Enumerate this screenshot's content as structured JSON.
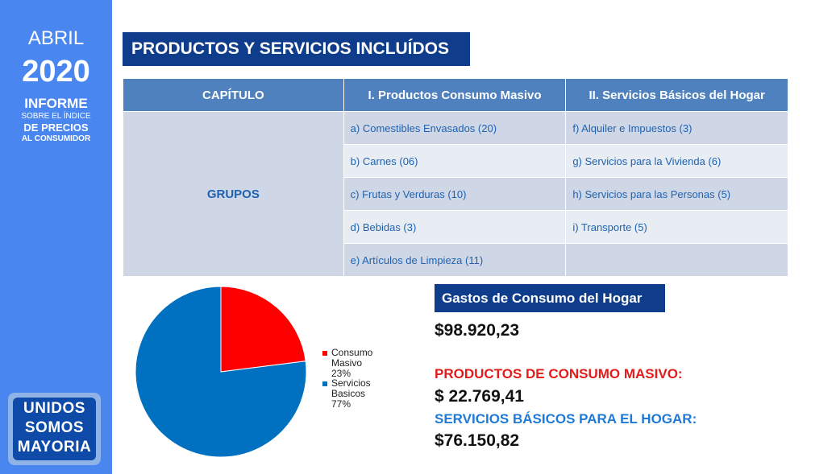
{
  "sidebar": {
    "month": "ABRIL",
    "year": "2020",
    "line1": "INFORME",
    "line2": "SOBRE EL ÍNDICE",
    "line3": "DE PRECIOS",
    "line4": "AL CONSUMIDOR",
    "logo": [
      "UNIDOS",
      "SOMOS",
      "MAYORIA"
    ]
  },
  "title": "PRODUCTOS Y SERVICIOS INCLUÍDOS",
  "table": {
    "headers": [
      "CAPÍTULO",
      "I. Productos Consumo Masivo",
      "II. Servicios Básicos del Hogar"
    ],
    "group_label": "GRUPOS",
    "col1": [
      "a) Comestibles Envasados (20)",
      "b) Carnes (06)",
      "c) Frutas y Verduras (10)",
      "d) Bebidas (3)",
      "e) Artículos de Limpieza (11)"
    ],
    "col2": [
      "f) Alquiler e Impuestos (3)",
      "g) Servicios para la Vivienda (6)",
      "h) Servicios para las Personas (5)",
      "i) Transporte (5)",
      ""
    ]
  },
  "chart_data": {
    "type": "pie",
    "legend_position": "right",
    "slices": [
      {
        "name": "Consumo Masivo",
        "value": 23,
        "label": "23%",
        "color": "#ff0000"
      },
      {
        "name": "Servicios Basicos",
        "value": 77,
        "label": "77%",
        "color": "#0070c0"
      }
    ]
  },
  "gastos": {
    "title": "Gastos de Consumo del Hogar",
    "total": "$98.920,23",
    "pcm_label": "PRODUCTOS DE CONSUMO MASIVO:",
    "pcm_value": "$ 22.769,41",
    "sbh_label": "SERVICIOS BÁSICOS PARA EL HOGAR:",
    "sbh_value": "$76.150,82"
  }
}
